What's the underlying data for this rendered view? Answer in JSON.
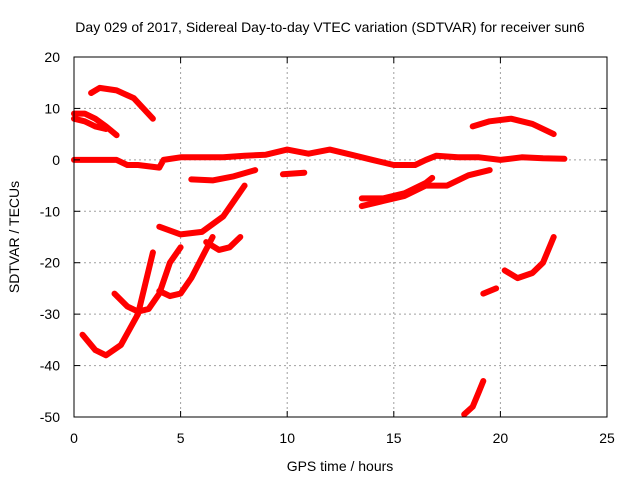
{
  "chart_data": {
    "type": "scatter",
    "title": "Day 029 of 2017, Sidereal Day-to-day VTEC variation (SDTVAR) for receiver sun6",
    "xlabel": "GPS time / hours",
    "ylabel": "SDTVAR / TECUs",
    "xlim": [
      0,
      25
    ],
    "ylim": [
      -50,
      20
    ],
    "xticks": [
      "0",
      "5",
      "10",
      "15",
      "20",
      "25"
    ],
    "yticks": [
      "20",
      "10",
      "0",
      "-10",
      "-20",
      "-30",
      "-40",
      "-50"
    ],
    "grid": true,
    "series_color": "#ff0000",
    "series": [
      {
        "name": "trace-baseline",
        "points": [
          [
            0,
            0
          ],
          [
            1,
            0
          ],
          [
            2,
            0
          ],
          [
            2.5,
            -1
          ],
          [
            3,
            -1
          ],
          [
            4,
            -1.5
          ],
          [
            4.2,
            0
          ],
          [
            5,
            0.5
          ],
          [
            6,
            0.5
          ],
          [
            7,
            0.5
          ],
          [
            8,
            0.8
          ],
          [
            9,
            1
          ],
          [
            10,
            2
          ],
          [
            11,
            1.2
          ],
          [
            12,
            2
          ],
          [
            13,
            1
          ],
          [
            14,
            0
          ],
          [
            15,
            -1
          ],
          [
            16,
            -1
          ],
          [
            16.5,
            0
          ],
          [
            17,
            0.8
          ],
          [
            18,
            0.5
          ],
          [
            19,
            0.5
          ],
          [
            20,
            0
          ],
          [
            21,
            0.5
          ],
          [
            22,
            0.3
          ],
          [
            23,
            0.2
          ]
        ]
      },
      {
        "name": "trace-top-arc",
        "points": [
          [
            0.8,
            13
          ],
          [
            1.2,
            14
          ],
          [
            2,
            13.5
          ],
          [
            2.8,
            12
          ],
          [
            3.7,
            8
          ]
        ]
      },
      {
        "name": "trace-left-drop",
        "points": [
          [
            0,
            9
          ],
          [
            0.5,
            9
          ],
          [
            1,
            8
          ],
          [
            1.5,
            6.5
          ],
          [
            2,
            4.8
          ]
        ]
      },
      {
        "name": "trace-left-band",
        "points": [
          [
            0,
            8
          ],
          [
            0.5,
            7.5
          ],
          [
            1,
            6.5
          ],
          [
            1.5,
            6
          ]
        ]
      },
      {
        "name": "trace-dip-a",
        "points": [
          [
            5.5,
            -3.8
          ],
          [
            6.5,
            -4
          ],
          [
            7.5,
            -3.2
          ],
          [
            8.5,
            -2
          ]
        ]
      },
      {
        "name": "trace-dip-b",
        "points": [
          [
            9.8,
            -2.8
          ],
          [
            10.8,
            -2.5
          ]
        ]
      },
      {
        "name": "trace-rise-mid",
        "points": [
          [
            13.5,
            -9
          ],
          [
            14.5,
            -8
          ],
          [
            15.5,
            -7
          ],
          [
            16.5,
            -5
          ],
          [
            17.5,
            -5
          ],
          [
            18.5,
            -3
          ],
          [
            19.5,
            -2
          ]
        ]
      },
      {
        "name": "trace-rise-step",
        "points": [
          [
            13.5,
            -7.5
          ],
          [
            14.5,
            -7.5
          ],
          [
            15.5,
            -6.5
          ],
          [
            16.5,
            -4.5
          ],
          [
            16.8,
            -3.5
          ]
        ]
      },
      {
        "name": "trace-right-arc",
        "points": [
          [
            18.7,
            6.5
          ],
          [
            19.5,
            7.5
          ],
          [
            20.5,
            8
          ],
          [
            21.5,
            7
          ],
          [
            22.5,
            5
          ]
        ]
      },
      {
        "name": "trace-u-large",
        "points": [
          [
            0.4,
            -34
          ],
          [
            1,
            -37
          ],
          [
            1.5,
            -38
          ],
          [
            2.2,
            -36
          ],
          [
            3,
            -30
          ],
          [
            3.7,
            -18
          ]
        ]
      },
      {
        "name": "trace-u-mid",
        "points": [
          [
            1.9,
            -26
          ],
          [
            2.5,
            -28.5
          ],
          [
            3,
            -29.5
          ],
          [
            3.5,
            -29
          ],
          [
            4,
            -26
          ],
          [
            4.5,
            -20
          ],
          [
            5,
            -17
          ]
        ]
      },
      {
        "name": "trace-u-small",
        "points": [
          [
            4,
            -25.5
          ],
          [
            4.5,
            -26.5
          ],
          [
            5,
            -26
          ],
          [
            5.5,
            -23
          ],
          [
            6,
            -19
          ],
          [
            6.5,
            -15
          ]
        ]
      },
      {
        "name": "trace-curve-upper",
        "points": [
          [
            4,
            -13
          ],
          [
            5,
            -14.5
          ],
          [
            6,
            -14
          ],
          [
            7,
            -11
          ],
          [
            7.5,
            -8
          ],
          [
            8,
            -5
          ]
        ]
      },
      {
        "name": "trace-curve-lower",
        "points": [
          [
            6.2,
            -16
          ],
          [
            6.8,
            -17.5
          ],
          [
            7.3,
            -17
          ],
          [
            7.8,
            -15
          ]
        ]
      },
      {
        "name": "trace-right-lower",
        "points": [
          [
            20.2,
            -21.5
          ],
          [
            20.8,
            -23
          ],
          [
            21.5,
            -22
          ],
          [
            22,
            -20
          ],
          [
            22.5,
            -15
          ]
        ]
      },
      {
        "name": "trace-right-short",
        "points": [
          [
            19.2,
            -26
          ],
          [
            19.8,
            -25
          ]
        ]
      },
      {
        "name": "trace-bottom-spike",
        "points": [
          [
            18.3,
            -49.5
          ],
          [
            18.7,
            -48
          ],
          [
            19,
            -45
          ],
          [
            19.2,
            -43
          ]
        ]
      }
    ]
  }
}
